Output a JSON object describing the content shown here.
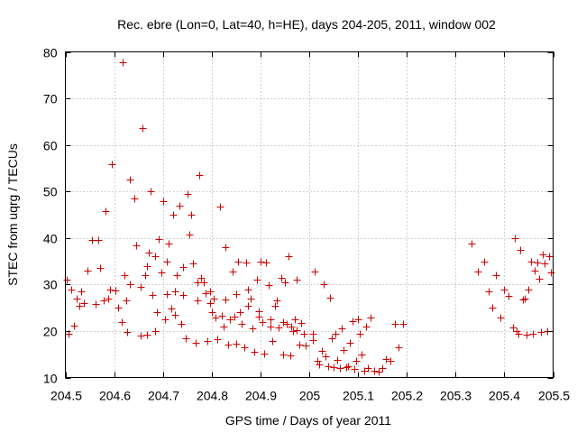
{
  "chart_data": {
    "type": "scatter",
    "title": "Rec. ebre (Lon=0, Lat=40, h=HE), days 204-205, 2011, window 002",
    "xlabel": "GPS time / Days of year 2011",
    "ylabel": "STEC from uqrg / TECUs",
    "xlim": [
      204.5,
      205.5
    ],
    "ylim": [
      10,
      80
    ],
    "x_ticks": [
      204.5,
      204.6,
      204.7,
      204.8,
      204.9,
      205,
      205.1,
      205.2,
      205.3,
      205.4,
      205.5
    ],
    "x_tick_labels": [
      "204.5",
      "204.6",
      "204.7",
      "204.8",
      "204.9",
      "205",
      "205.1",
      "205.2",
      "205.3",
      "205.4",
      "205.5"
    ],
    "y_ticks": [
      10,
      20,
      30,
      40,
      50,
      60,
      70,
      80
    ],
    "y_tick_labels": [
      "10",
      "20",
      "30",
      "40",
      "50",
      "60",
      "70",
      "80"
    ],
    "grid": true,
    "marker": "plus",
    "color": "#cc0000",
    "series": [
      {
        "x": [
          204.503,
          204.506,
          204.512,
          204.517,
          204.523,
          204.529,
          204.533,
          204.538,
          204.546,
          204.554,
          204.561,
          204.567,
          204.571,
          204.578,
          204.583,
          204.587,
          204.592,
          204.596,
          204.602,
          204.608,
          204.615,
          204.621,
          204.627,
          204.633,
          204.642,
          204.646,
          204.654,
          204.658,
          204.663,
          204.667,
          204.671,
          204.675,
          204.679,
          204.683,
          204.687,
          204.692,
          204.696,
          204.7,
          204.704,
          204.708,
          204.712,
          204.717,
          204.721,
          204.725,
          204.729,
          204.733,
          204.738,
          204.742,
          204.746,
          204.75,
          204.754,
          204.758,
          204.762,
          204.767,
          204.771,
          204.775,
          204.779,
          204.783,
          204.788,
          204.792,
          204.796,
          204.8,
          204.804,
          204.808,
          204.812,
          204.817,
          204.821,
          204.825,
          204.829,
          204.833,
          204.838,
          204.842,
          204.846,
          204.85,
          204.854,
          204.858,
          204.862,
          204.867,
          204.871,
          204.875,
          204.879,
          204.883,
          204.888,
          204.892,
          204.896,
          204.9,
          204.904,
          204.908,
          204.912,
          204.917,
          204.921,
          204.925,
          204.929,
          204.933,
          204.938,
          204.942,
          204.946,
          204.95,
          204.954,
          204.958,
          204.962,
          204.967,
          204.971,
          204.975,
          204.979,
          204.983,
          204.988,
          204.992,
          205.008,
          205.012,
          205.017,
          205.021,
          205.025,
          205.029,
          205.033,
          205.038,
          205.042,
          205.046,
          205.05,
          205.054,
          205.058,
          205.062,
          205.067,
          205.071,
          205.075,
          205.079,
          205.083,
          205.088,
          205.092,
          205.096,
          205.1,
          205.104,
          205.108,
          205.112,
          205.117,
          205.121,
          205.125,
          205.133,
          205.142,
          205.15,
          205.158,
          205.167,
          205.175,
          205.183,
          205.192,
          205.333,
          205.346,
          205.358,
          205.367,
          205.375,
          205.383,
          205.392,
          205.4,
          205.408,
          205.417,
          205.421,
          205.425,
          205.429,
          205.433,
          205.438,
          205.442,
          205.446,
          205.45,
          205.454,
          205.458,
          205.462,
          205.467,
          205.471,
          205.475,
          205.479,
          205.483,
          205.488,
          205.492,
          205.496,
          204.617,
          204.625,
          204.633,
          204.654,
          204.667,
          204.683,
          204.708,
          204.725,
          204.742,
          204.771,
          204.796,
          204.829,
          204.85,
          204.875,
          204.896,
          204.921,
          204.946,
          204.963,
          204.975,
          205.008
        ],
        "y": [
          31.0,
          19.5,
          29.0,
          21.2,
          27.0,
          25.5,
          28.5,
          26.0,
          33.0,
          39.5,
          25.8,
          39.5,
          33.5,
          26.5,
          45.8,
          27.0,
          29.0,
          55.8,
          28.8,
          25.0,
          22.0,
          32.0,
          19.8,
          52.5,
          48.5,
          38.5,
          19.0,
          63.7,
          32.0,
          19.2,
          36.8,
          50.0,
          27.8,
          20.0,
          24.0,
          39.8,
          32.5,
          48.0,
          22.5,
          28.0,
          38.8,
          24.8,
          45.0,
          23.5,
          32.0,
          47.0,
          21.5,
          33.8,
          18.5,
          49.5,
          40.8,
          45.0,
          34.5,
          17.5,
          26.5,
          53.5,
          31.5,
          30.5,
          28.2,
          17.8,
          26.0,
          24.0,
          27.0,
          22.8,
          18.2,
          46.8,
          23.2,
          21.0,
          38.0,
          17.0,
          22.5,
          32.8,
          23.0,
          17.2,
          35.0,
          24.0,
          21.5,
          16.5,
          34.8,
          29.0,
          27.0,
          20.5,
          15.5,
          31.0,
          23.0,
          35.0,
          22.0,
          15.2,
          34.8,
          29.8,
          21.0,
          17.8,
          25.5,
          26.5,
          20.8,
          31.5,
          15.0,
          30.5,
          21.5,
          36.0,
          14.8,
          20.0,
          22.5,
          31.0,
          17.0,
          21.8,
          19.5,
          16.8,
          19.5,
          32.8,
          13.5,
          12.8,
          15.8,
          30.0,
          14.5,
          12.5,
          27.2,
          18.5,
          12.2,
          19.5,
          13.8,
          12.0,
          20.5,
          16.0,
          12.2,
          12.5,
          17.5,
          22.2,
          11.8,
          13.5,
          22.5,
          19.5,
          15.0,
          11.5,
          21.0,
          12.0,
          22.8,
          11.5,
          11.2,
          12.0,
          14.0,
          13.5,
          21.5,
          16.5,
          21.5,
          38.8,
          32.8,
          35.0,
          28.5,
          25.0,
          32.0,
          22.8,
          29.0,
          27.5,
          20.8,
          40.0,
          20.0,
          19.5,
          37.5,
          26.8,
          27.0,
          19.2,
          29.0,
          35.0,
          19.5,
          33.0,
          34.8,
          31.2,
          19.8,
          36.5,
          34.5,
          20.0,
          36.0,
          32.5,
          77.8,
          26.5,
          30.0,
          29.5,
          34.0,
          36.0,
          35.0,
          28.5,
          27.8,
          30.5,
          28.5,
          26.8,
          28.0,
          25.5,
          24.2,
          22.5,
          22.0,
          21.0,
          20.2,
          18.0
        ]
      }
    ]
  }
}
